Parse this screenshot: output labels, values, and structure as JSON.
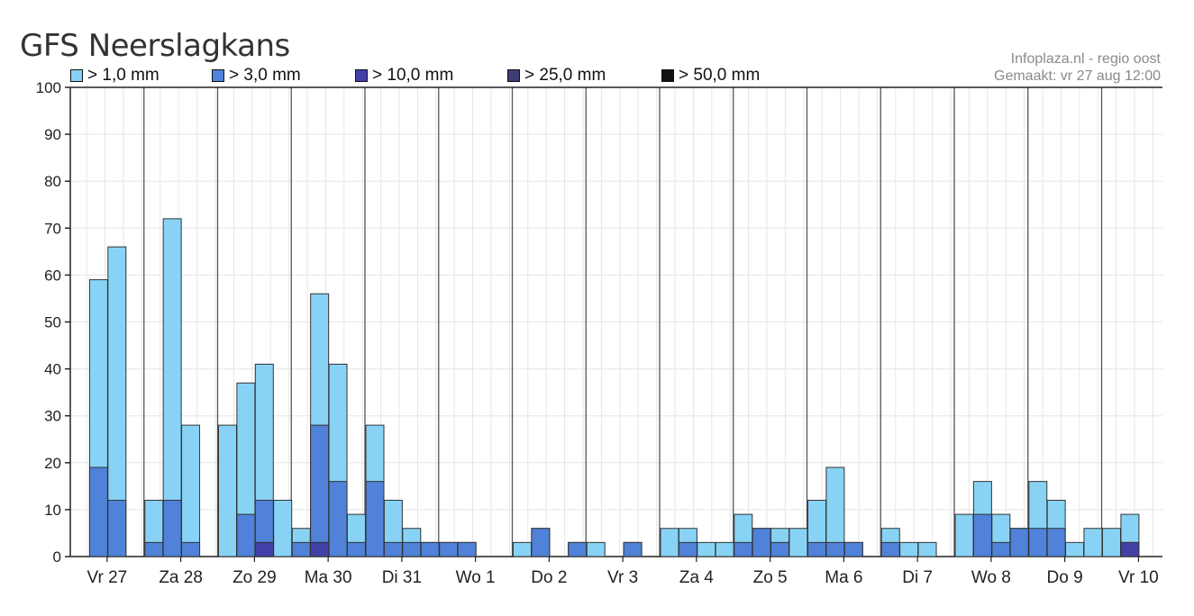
{
  "title": "GFS Neerslagkans",
  "source": {
    "line1": "Infoplaza.nl - regio oost",
    "line2": "Gemaakt: vr 27 aug 12:00"
  },
  "colors": {
    "l1": "#88d3f5",
    "l3": "#4f82d8",
    "l10": "#4340a8",
    "l25": "#3f3d73",
    "l50": "#111111"
  },
  "chart_data": {
    "type": "bar",
    "stacked": "overlapping",
    "ylim": [
      0,
      100
    ],
    "yticks": [
      0,
      10,
      20,
      30,
      40,
      50,
      60,
      70,
      80,
      90,
      100
    ],
    "grid": true,
    "legend_position": "top",
    "day_labels": [
      "Vr 27",
      "Za 28",
      "Zo 29",
      "Ma 30",
      "Di 31",
      "Wo 1",
      "Do 2",
      "Vr 3",
      "Za 4",
      "Zo 5",
      "Ma 6",
      "Di 7",
      "Wo 8",
      "Do 9",
      "Vr 10"
    ],
    "bars_per_day": 4,
    "series": [
      {
        "name": "> 1,0 mm",
        "color": "#88d3f5",
        "values": [
          0,
          59,
          66,
          0,
          12,
          72,
          28,
          0,
          28,
          37,
          41,
          12,
          6,
          56,
          41,
          9,
          28,
          12,
          6,
          3,
          3,
          3,
          0,
          0,
          3,
          6,
          0,
          3,
          3,
          0,
          3,
          0,
          6,
          6,
          3,
          3,
          9,
          6,
          6,
          6,
          12,
          19,
          3,
          0,
          6,
          3,
          3,
          0,
          9,
          16,
          9,
          6,
          16,
          12,
          3,
          6,
          6,
          9,
          0,
          0
        ]
      },
      {
        "name": "> 3,0 mm",
        "color": "#4f82d8",
        "values": [
          0,
          19,
          12,
          0,
          3,
          12,
          3,
          0,
          0,
          9,
          12,
          0,
          3,
          28,
          16,
          3,
          16,
          3,
          3,
          3,
          3,
          3,
          0,
          0,
          0,
          6,
          0,
          3,
          0,
          0,
          3,
          0,
          0,
          3,
          0,
          0,
          3,
          6,
          3,
          0,
          3,
          3,
          3,
          0,
          3,
          0,
          0,
          0,
          0,
          9,
          3,
          6,
          6,
          6,
          0,
          0,
          0,
          3,
          0,
          0
        ]
      },
      {
        "name": "> 10,0 mm",
        "color": "#4340a8",
        "values": [
          0,
          0,
          0,
          0,
          0,
          0,
          0,
          0,
          0,
          0,
          3,
          0,
          0,
          3,
          0,
          0,
          0,
          0,
          0,
          0,
          0,
          0,
          0,
          0,
          0,
          0,
          0,
          0,
          0,
          0,
          0,
          0,
          0,
          0,
          0,
          0,
          0,
          0,
          0,
          0,
          0,
          0,
          0,
          0,
          0,
          0,
          0,
          0,
          0,
          0,
          0,
          0,
          0,
          0,
          0,
          0,
          0,
          3,
          0,
          0
        ]
      },
      {
        "name": "> 25,0 mm",
        "color": "#3f3d73",
        "values": [
          0,
          0,
          0,
          0,
          0,
          0,
          0,
          0,
          0,
          0,
          0,
          0,
          0,
          0,
          0,
          0,
          0,
          0,
          0,
          0,
          0,
          0,
          0,
          0,
          0,
          0,
          0,
          0,
          0,
          0,
          0,
          0,
          0,
          0,
          0,
          0,
          0,
          0,
          0,
          0,
          0,
          0,
          0,
          0,
          0,
          0,
          0,
          0,
          0,
          0,
          0,
          0,
          0,
          0,
          0,
          0,
          0,
          0,
          0,
          0
        ]
      },
      {
        "name": "> 50,0 mm",
        "color": "#111111",
        "values": [
          0,
          0,
          0,
          0,
          0,
          0,
          0,
          0,
          0,
          0,
          0,
          0,
          0,
          0,
          0,
          0,
          0,
          0,
          0,
          0,
          0,
          0,
          0,
          0,
          0,
          0,
          0,
          0,
          0,
          0,
          0,
          0,
          0,
          0,
          0,
          0,
          0,
          0,
          0,
          0,
          0,
          0,
          0,
          0,
          0,
          0,
          0,
          0,
          0,
          0,
          0,
          0,
          0,
          0,
          0,
          0,
          0,
          0,
          0,
          0
        ]
      }
    ]
  }
}
